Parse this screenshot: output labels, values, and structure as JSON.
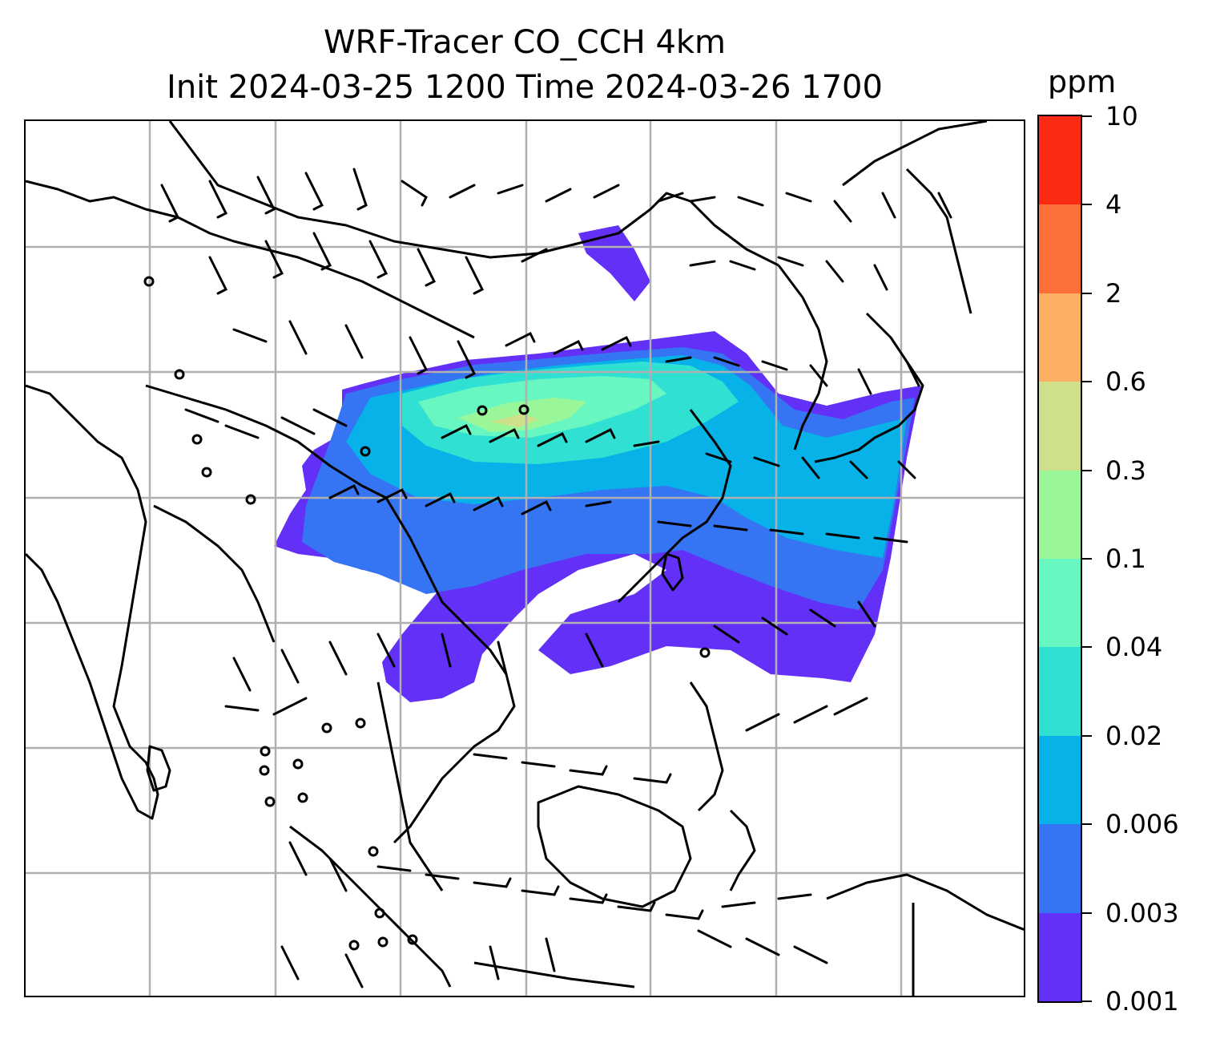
{
  "title_line1": "WRF-Tracer CO_CCH 4km",
  "title_line2": "Init 2024-03-25 1200 Time 2024-03-26 1700",
  "colorbar": {
    "unit": "ppm",
    "ticks": [
      "10",
      "4",
      "2",
      "0.6",
      "0.3",
      "0.1",
      "0.04",
      "0.02",
      "0.006",
      "0.003",
      "0.001"
    ],
    "colors": [
      "#6230f7",
      "#3574f2",
      "#06b2e8",
      "#30e0d2",
      "#68f7c0",
      "#9af799",
      "#cfe08a",
      "#fdb063",
      "#fd7039",
      "#fc2a12"
    ]
  },
  "map": {
    "land_outline_color": "#000000",
    "gridline_color": "#b0b0b0",
    "barb_color": "#000000",
    "calm_marker": "open-circle"
  }
}
